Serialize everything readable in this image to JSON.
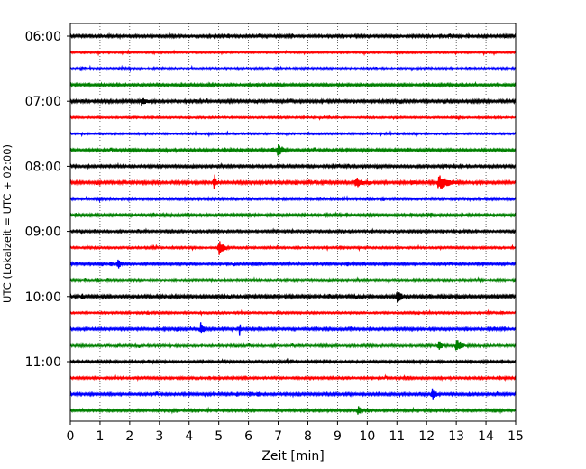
{
  "chart_data": {
    "type": "line",
    "chart_kind": "helicorder",
    "title": "",
    "xlabel": "Zeit  [min]",
    "ylabel": "UTC (Lokalzeit = UTC + 02:00)",
    "xlim": [
      0,
      15
    ],
    "xticks": [
      "0",
      "1",
      "2",
      "3",
      "4",
      "5",
      "6",
      "7",
      "8",
      "9",
      "10",
      "11",
      "12",
      "13",
      "14",
      "15"
    ],
    "xgrid": "dotted vertical at each minute",
    "yticks": [
      "06:00",
      "07:00",
      "08:00",
      "09:00",
      "10:00",
      "11:00"
    ],
    "trace_interval_min": 15,
    "colors": [
      "#000000",
      "#ff0000",
      "#0000ff",
      "#008000"
    ],
    "series": [
      {
        "start": "06:00",
        "color": "#000000",
        "noise": 0.9,
        "events": []
      },
      {
        "start": "06:15",
        "color": "#ff0000",
        "noise": 0.6,
        "events": []
      },
      {
        "start": "06:30",
        "color": "#0000ff",
        "noise": 0.8,
        "events": []
      },
      {
        "start": "06:45",
        "color": "#008000",
        "noise": 0.9,
        "events": []
      },
      {
        "start": "07:00",
        "color": "#000000",
        "noise": 1.0,
        "events": [
          {
            "t": 2.4,
            "amp": 5,
            "dur": 0.8
          },
          {
            "t": 1.3,
            "amp": 2,
            "dur": 0.2
          }
        ]
      },
      {
        "start": "07:15",
        "color": "#ff0000",
        "noise": 0.6,
        "events": []
      },
      {
        "start": "07:30",
        "color": "#0000ff",
        "noise": 0.6,
        "events": []
      },
      {
        "start": "07:45",
        "color": "#008000",
        "noise": 0.9,
        "events": [
          {
            "t": 7.0,
            "amp": 9,
            "dur": 0.5
          },
          {
            "t": 6.8,
            "amp": 4,
            "dur": 0.3
          }
        ]
      },
      {
        "start": "08:00",
        "color": "#000000",
        "noise": 0.9,
        "events": [
          {
            "t": 8.8,
            "amp": 2,
            "dur": 0.4
          }
        ]
      },
      {
        "start": "08:15",
        "color": "#ff0000",
        "noise": 1.0,
        "events": [
          {
            "t": 4.85,
            "amp": 12,
            "dur": 0.15
          },
          {
            "t": 9.6,
            "amp": 7,
            "dur": 0.8
          },
          {
            "t": 12.4,
            "amp": 9,
            "dur": 1.2
          },
          {
            "t": 11.5,
            "amp": 4,
            "dur": 0.5
          }
        ]
      },
      {
        "start": "08:30",
        "color": "#0000ff",
        "noise": 0.8,
        "events": []
      },
      {
        "start": "08:45",
        "color": "#008000",
        "noise": 0.9,
        "events": [
          {
            "t": 0.2,
            "amp": 3,
            "dur": 0.3
          }
        ]
      },
      {
        "start": "09:00",
        "color": "#000000",
        "noise": 0.8,
        "events": []
      },
      {
        "start": "09:15",
        "color": "#ff0000",
        "noise": 0.7,
        "events": [
          {
            "t": 5.0,
            "amp": 10,
            "dur": 0.5
          }
        ]
      },
      {
        "start": "09:30",
        "color": "#0000ff",
        "noise": 0.8,
        "events": [
          {
            "t": 1.6,
            "amp": 7,
            "dur": 0.3
          },
          {
            "t": 1.35,
            "amp": 4,
            "dur": 0.2
          }
        ]
      },
      {
        "start": "09:45",
        "color": "#008000",
        "noise": 0.9,
        "events": []
      },
      {
        "start": "10:00",
        "color": "#000000",
        "noise": 1.0,
        "events": [
          {
            "t": 11.0,
            "amp": 9,
            "dur": 0.5
          },
          {
            "t": 0.4,
            "amp": 4,
            "dur": 0.2
          }
        ]
      },
      {
        "start": "10:15",
        "color": "#ff0000",
        "noise": 0.7,
        "events": []
      },
      {
        "start": "10:30",
        "color": "#0000ff",
        "noise": 0.9,
        "events": [
          {
            "t": 4.4,
            "amp": 9,
            "dur": 0.3
          },
          {
            "t": 5.7,
            "amp": 7,
            "dur": 0.2
          },
          {
            "t": 3.6,
            "amp": 3,
            "dur": 0.4
          },
          {
            "t": 14.3,
            "amp": 3,
            "dur": 0.3
          }
        ]
      },
      {
        "start": "10:45",
        "color": "#008000",
        "noise": 1.0,
        "events": [
          {
            "t": 12.4,
            "amp": 6,
            "dur": 0.5
          },
          {
            "t": 13.0,
            "amp": 8,
            "dur": 0.7
          },
          {
            "t": 1.6,
            "amp": 4,
            "dur": 0.2
          }
        ]
      },
      {
        "start": "11:00",
        "color": "#000000",
        "noise": 0.8,
        "events": []
      },
      {
        "start": "11:15",
        "color": "#ff0000",
        "noise": 0.8,
        "events": []
      },
      {
        "start": "11:30",
        "color": "#0000ff",
        "noise": 0.9,
        "events": [
          {
            "t": 12.2,
            "amp": 8,
            "dur": 0.4
          },
          {
            "t": 6.3,
            "amp": 3,
            "dur": 0.3
          }
        ]
      },
      {
        "start": "11:45",
        "color": "#008000",
        "noise": 0.8,
        "events": [
          {
            "t": 9.7,
            "amp": 7,
            "dur": 0.3
          }
        ]
      }
    ]
  }
}
